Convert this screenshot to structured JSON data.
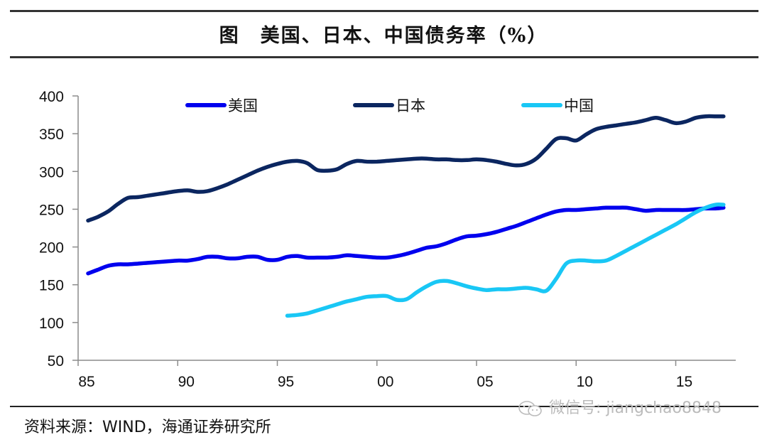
{
  "header": {
    "title": "图　美国、日本、中国债务率（%）"
  },
  "footer": {
    "source": "资料来源：WIND，海通证券研究所",
    "watermark": "微信号: jiangchao8848",
    "watermark_icon": "wechat-icon"
  },
  "chart_data": {
    "type": "line",
    "title": "图　美国、日本、中国债务率（%）",
    "xlabel": "",
    "ylabel": "",
    "xlim": [
      1985,
      2018
    ],
    "ylim": [
      50,
      400
    ],
    "yticks": [
      50,
      100,
      150,
      200,
      250,
      300,
      350,
      400
    ],
    "ytick_labels": [
      "50",
      "100",
      "150",
      "200",
      "250",
      "300",
      "350",
      "400"
    ],
    "xticks": [
      1985,
      1990,
      1995,
      2000,
      2005,
      2010,
      2015
    ],
    "xtick_labels": [
      "85",
      "90",
      "95",
      "00",
      "05",
      "10",
      "15"
    ],
    "grid": false,
    "legend_position": "top",
    "series": [
      {
        "name": "美国",
        "color": "#0000ee",
        "x": [
          1985.5,
          1986.0,
          1986.5,
          1987.0,
          1987.5,
          1988.0,
          1988.5,
          1989.0,
          1989.5,
          1990.0,
          1990.5,
          1991.0,
          1991.5,
          1992.0,
          1992.5,
          1993.0,
          1993.5,
          1994.0,
          1994.5,
          1995.0,
          1995.5,
          1996.0,
          1996.5,
          1997.0,
          1997.5,
          1998.0,
          1998.5,
          1999.0,
          1999.5,
          2000.0,
          2000.5,
          2001.0,
          2001.5,
          2002.0,
          2002.5,
          2003.0,
          2003.5,
          2004.0,
          2004.5,
          2005.0,
          2005.5,
          2006.0,
          2006.5,
          2007.0,
          2007.5,
          2008.0,
          2008.5,
          2009.0,
          2009.5,
          2010.0,
          2010.5,
          2011.0,
          2011.5,
          2012.0,
          2012.5,
          2013.0,
          2013.5,
          2014.0,
          2014.5,
          2015.0,
          2015.5,
          2016.0,
          2016.5,
          2017.0,
          2017.4
        ],
        "values": [
          165,
          170,
          175,
          177,
          177,
          178,
          179,
          180,
          181,
          182,
          182,
          184,
          187,
          187,
          185,
          185,
          187,
          187,
          183,
          183,
          187,
          188,
          186,
          186,
          186,
          187,
          189,
          188,
          187,
          186,
          186,
          188,
          191,
          195,
          199,
          201,
          205,
          210,
          214,
          215,
          217,
          220,
          224,
          228,
          233,
          238,
          243,
          247,
          249,
          249,
          250,
          251,
          252,
          252,
          252,
          250,
          248,
          249,
          249,
          249,
          249,
          250,
          251,
          251,
          252
        ]
      },
      {
        "name": "日本",
        "color": "#0b2660",
        "x": [
          1985.5,
          1986.0,
          1986.5,
          1987.0,
          1987.5,
          1988.0,
          1988.5,
          1989.0,
          1989.5,
          1990.0,
          1990.5,
          1991.0,
          1991.5,
          1992.0,
          1992.5,
          1993.0,
          1993.5,
          1994.0,
          1994.5,
          1995.0,
          1995.5,
          1996.0,
          1996.5,
          1997.0,
          1997.5,
          1998.0,
          1998.5,
          1999.0,
          1999.5,
          2000.0,
          2000.5,
          2001.0,
          2001.5,
          2002.0,
          2002.5,
          2003.0,
          2003.5,
          2004.0,
          2004.5,
          2005.0,
          2005.5,
          2006.0,
          2006.5,
          2007.0,
          2007.5,
          2008.0,
          2008.5,
          2009.0,
          2009.5,
          2010.0,
          2010.5,
          2011.0,
          2011.5,
          2012.0,
          2012.5,
          2013.0,
          2013.5,
          2014.0,
          2014.5,
          2015.0,
          2015.5,
          2016.0,
          2016.5,
          2017.0,
          2017.4
        ],
        "values": [
          235,
          240,
          247,
          257,
          265,
          266,
          268,
          270,
          272,
          274,
          275,
          273,
          274,
          278,
          283,
          289,
          295,
          301,
          306,
          310,
          313,
          314,
          311,
          302,
          301,
          303,
          310,
          314,
          313,
          313,
          314,
          315,
          316,
          317,
          317,
          316,
          316,
          315,
          315,
          316,
          315,
          313,
          310,
          308,
          310,
          317,
          330,
          343,
          344,
          341,
          349,
          356,
          359,
          361,
          363,
          365,
          368,
          371,
          368,
          364,
          366,
          371,
          373,
          373,
          373
        ]
      },
      {
        "name": "中国",
        "color": "#19c7f5",
        "x": [
          1995.5,
          1996.0,
          1996.5,
          1997.0,
          1997.5,
          1998.0,
          1998.5,
          1999.0,
          1999.5,
          2000.0,
          2000.5,
          2001.0,
          2001.5,
          2002.0,
          2002.5,
          2003.0,
          2003.5,
          2004.0,
          2004.5,
          2005.0,
          2005.5,
          2006.0,
          2006.5,
          2007.0,
          2007.5,
          2008.0,
          2008.5,
          2009.0,
          2009.5,
          2010.0,
          2010.5,
          2011.0,
          2011.5,
          2012.0,
          2012.5,
          2013.0,
          2013.5,
          2014.0,
          2014.5,
          2015.0,
          2015.5,
          2016.0,
          2016.5,
          2017.0,
          2017.4
        ],
        "values": [
          109,
          110,
          112,
          116,
          120,
          124,
          128,
          131,
          134,
          135,
          135,
          130,
          131,
          140,
          148,
          154,
          155,
          152,
          148,
          145,
          143,
          144,
          144,
          145,
          146,
          144,
          142,
          158,
          178,
          182,
          182,
          181,
          182,
          188,
          195,
          202,
          209,
          216,
          223,
          230,
          238,
          246,
          252,
          256,
          256
        ]
      }
    ]
  }
}
